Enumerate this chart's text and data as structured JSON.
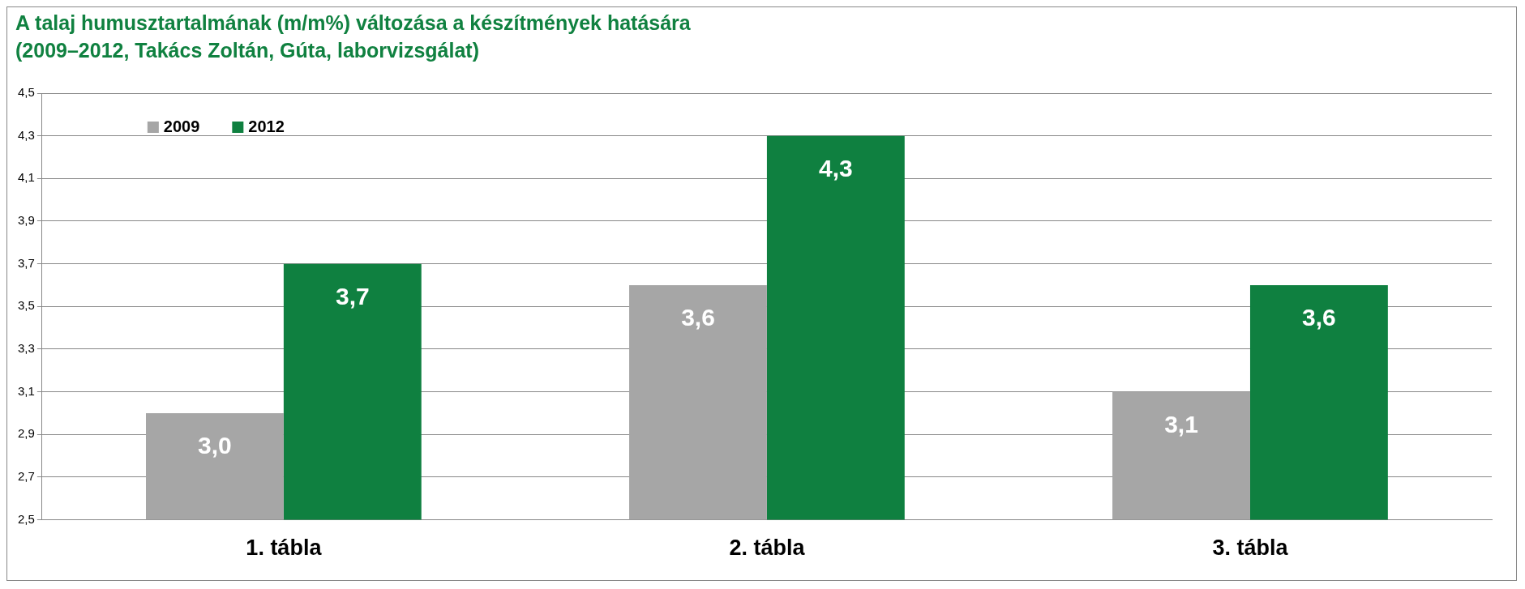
{
  "chart_data": {
    "type": "bar",
    "title": "A talaj humusztartalmának (m/m%) változása a készítmények hatására",
    "subtitle": "(2009–2012, Takács Zoltán, Gúta, laborvizsgálat)",
    "categories": [
      "1. tábla",
      "2. tábla",
      "3. tábla"
    ],
    "series": [
      {
        "name": "2009",
        "color": "#a6a6a6",
        "values": [
          3.0,
          3.6,
          3.1
        ],
        "value_labels": [
          "3,0",
          "3,6",
          "3,1"
        ]
      },
      {
        "name": "2012",
        "color": "#0f8040",
        "values": [
          3.7,
          4.3,
          3.6
        ],
        "value_labels": [
          "3,7",
          "4,3",
          "3,6"
        ]
      }
    ],
    "ylim": [
      2.5,
      4.5
    ],
    "yticks": [
      {
        "value": 2.5,
        "label": "2,5"
      },
      {
        "value": 2.7,
        "label": "2,7"
      },
      {
        "value": 2.9,
        "label": "2,9"
      },
      {
        "value": 3.1,
        "label": "3,1"
      },
      {
        "value": 3.3,
        "label": "3,3"
      },
      {
        "value": 3.5,
        "label": "3,5"
      },
      {
        "value": 3.7,
        "label": "3,7"
      },
      {
        "value": 3.9,
        "label": "3,9"
      },
      {
        "value": 4.1,
        "label": "4,1"
      },
      {
        "value": 4.3,
        "label": "4,3"
      },
      {
        "value": 4.5,
        "label": "4,5"
      }
    ],
    "grid": "y",
    "legend": "top left"
  }
}
